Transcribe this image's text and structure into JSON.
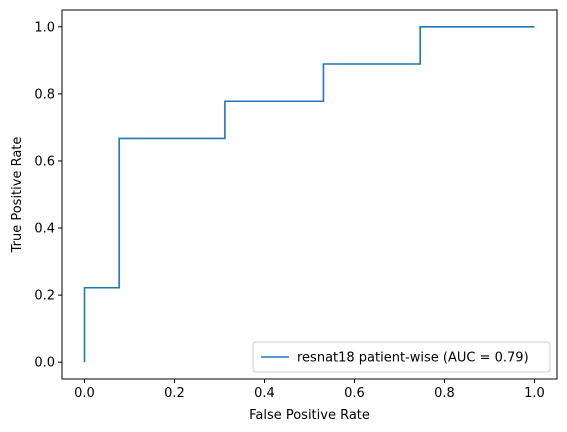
{
  "chart_data": {
    "type": "line",
    "title": "",
    "xlabel": "False Positive Rate",
    "ylabel": "True Positive Rate",
    "xlim": [
      -0.05,
      1.05
    ],
    "ylim": [
      -0.05,
      1.05
    ],
    "xticks": [
      0.0,
      0.2,
      0.4,
      0.6,
      0.8,
      1.0
    ],
    "yticks": [
      0.0,
      0.2,
      0.4,
      0.6,
      0.8,
      1.0
    ],
    "xtick_labels": [
      "0.0",
      "0.2",
      "0.4",
      "0.6",
      "0.8",
      "1.0"
    ],
    "ytick_labels": [
      "0.0",
      "0.2",
      "0.4",
      "0.6",
      "0.8",
      "1.0"
    ],
    "grid": false,
    "legend_position": "lower-right",
    "series": [
      {
        "name": "resnat18 patient-wise (AUC = 0.79)",
        "color": "#1f77b4",
        "x": [
          0.0,
          0.0,
          0.077,
          0.077,
          0.312,
          0.312,
          0.531,
          0.531,
          0.746,
          0.746,
          1.0
        ],
        "y": [
          0.0,
          0.222,
          0.222,
          0.667,
          0.667,
          0.778,
          0.778,
          0.889,
          0.889,
          1.0,
          1.0
        ]
      }
    ]
  }
}
